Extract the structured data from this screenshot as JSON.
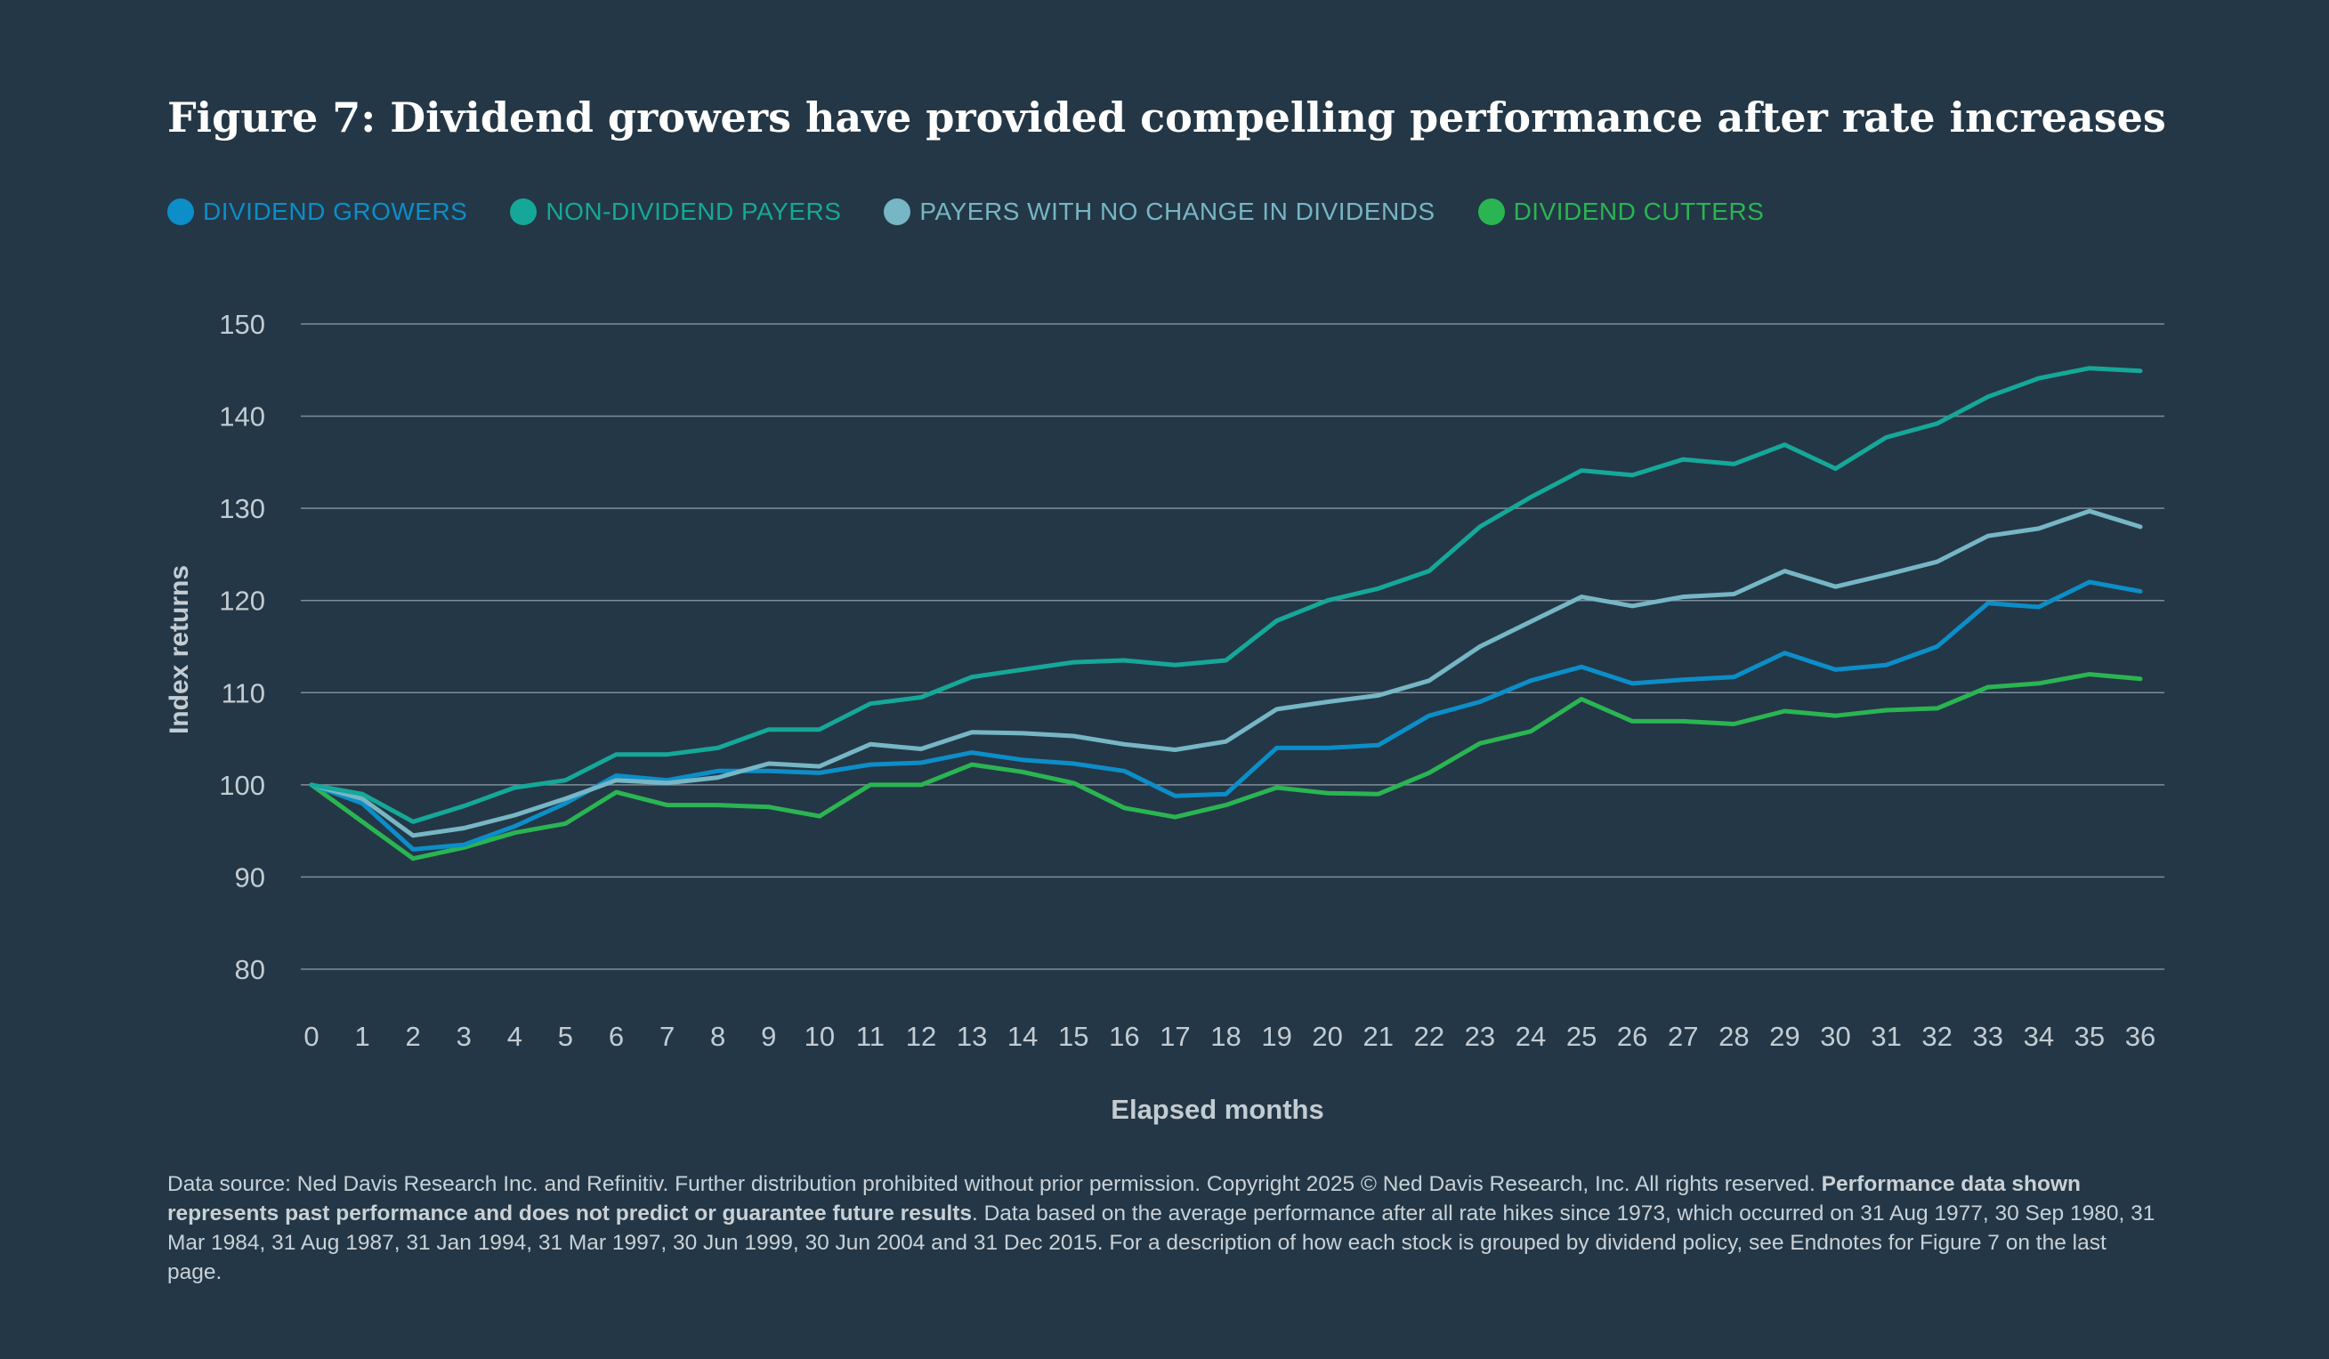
{
  "title": "Figure 7: Dividend growers have provided compelling performance after rate increases",
  "legend": [
    {
      "label": "DIVIDEND GROWERS",
      "color": "#0c8ec8"
    },
    {
      "label": "NON-DIVIDEND PAYERS",
      "color": "#15a898"
    },
    {
      "label": "PAYERS WITH NO CHANGE IN DIVIDENDS",
      "color": "#76b6c5"
    },
    {
      "label": "DIVIDEND CUTTERS",
      "color": "#2ab552"
    }
  ],
  "chart_data": {
    "type": "line",
    "title": "Figure 7: Dividend growers have provided compelling performance after rate increases",
    "xlabel": "Elapsed months",
    "ylabel": "Index returns",
    "x": [
      0,
      1,
      2,
      3,
      4,
      5,
      6,
      7,
      8,
      9,
      10,
      11,
      12,
      13,
      14,
      15,
      16,
      17,
      18,
      19,
      20,
      21,
      22,
      23,
      24,
      25,
      26,
      27,
      28,
      29,
      30,
      31,
      32,
      33,
      34,
      35,
      36
    ],
    "ylim": [
      80,
      150
    ],
    "yticks": [
      80,
      90,
      100,
      110,
      120,
      130,
      140,
      150
    ],
    "grid": true,
    "legend_position": "top",
    "series": [
      {
        "name": "DIVIDEND GROWERS",
        "color": "#0c8ec8",
        "values": [
          100,
          98,
          93,
          93.5,
          95.5,
          98,
          101,
          100.5,
          101.5,
          101.5,
          101.3,
          102.2,
          102.4,
          103.5,
          102.7,
          102.3,
          101.5,
          98.8,
          99,
          104,
          104,
          104.3,
          107.5,
          109,
          111.3,
          112.8,
          111,
          111.4,
          111.7,
          114.3,
          112.5,
          113,
          115,
          119.7,
          119.3,
          122,
          121
        ]
      },
      {
        "name": "NON-DIVIDEND PAYERS",
        "color": "#15a898",
        "values": [
          100,
          99,
          96,
          97.7,
          99.7,
          100.5,
          103.3,
          103.3,
          104,
          106,
          106,
          108.8,
          109.5,
          111.7,
          112.5,
          113.3,
          113.5,
          113,
          113.5,
          117.8,
          120,
          121.3,
          123.2,
          128,
          131.2,
          134.1,
          133.6,
          135.3,
          134.8,
          136.9,
          134.3,
          137.7,
          139.2,
          142.1,
          144.1,
          145.2,
          144.9
        ]
      },
      {
        "name": "PAYERS WITH NO CHANGE IN DIVIDENDS",
        "color": "#76b6c5",
        "values": [
          100,
          98.5,
          94.5,
          95.3,
          96.7,
          98.5,
          100.5,
          100.2,
          100.8,
          102.3,
          102,
          104.4,
          103.9,
          105.7,
          105.6,
          105.3,
          104.4,
          103.8,
          104.7,
          108.2,
          109,
          109.7,
          111.3,
          115,
          117.7,
          120.4,
          119.4,
          120.4,
          120.7,
          123.2,
          121.5,
          122.8,
          124.2,
          127,
          127.8,
          129.7,
          128
        ]
      },
      {
        "name": "DIVIDEND CUTTERS",
        "color": "#2ab552",
        "values": [
          100,
          96,
          92,
          93.2,
          94.8,
          95.8,
          99.2,
          97.8,
          97.8,
          97.6,
          96.6,
          100,
          100,
          102.2,
          101.4,
          100.2,
          97.5,
          96.5,
          97.8,
          99.7,
          99.1,
          99,
          101.3,
          104.5,
          105.8,
          109.3,
          106.9,
          106.9,
          106.6,
          108,
          107.5,
          108.1,
          108.3,
          110.6,
          111,
          112,
          111.5
        ]
      }
    ]
  },
  "footnote": {
    "part1": "Data source: Ned Davis Research Inc. and Refinitiv. Further distribution prohibited without prior permission. Copyright 2025 © Ned Davis Research, Inc. All rights reserved. ",
    "bold": "Performance data shown represents past performance and does not predict or guarantee future results",
    "part2": ". Data based on the average performance after all rate hikes since 1973, which occurred on 31 Aug 1977, 30 Sep 1980, 31 Mar 1984, 31 Aug 1987, 31 Jan 1994, 31 Mar 1997, 30 Jun 1999, 30 Jun 2004 and 31 Dec 2015. For a description of how each stock is grouped by dividend policy, see Endnotes for Figure 7 on the last page."
  }
}
